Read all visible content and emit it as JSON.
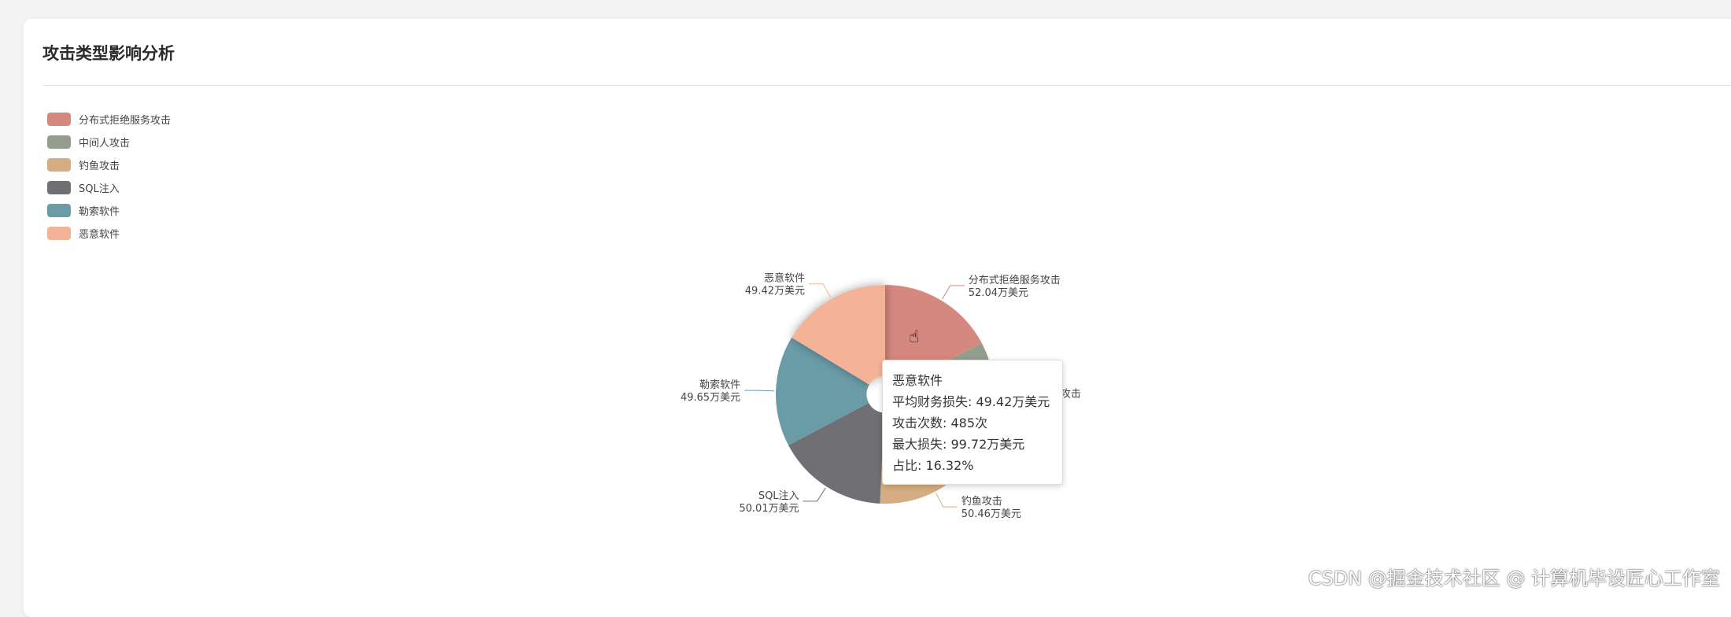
{
  "card": {
    "title": "攻击类型影响分析"
  },
  "chart_data": {
    "type": "pie",
    "title": "攻击类型影响分析",
    "unit": "万美元",
    "legend_position": "top-left",
    "start_angle": 90,
    "inner_radius_ratio": 0.17,
    "categories": [
      "分布式拒绝服务攻击",
      "中间人攻击",
      "钓鱼攻击",
      "SQL注入",
      "勒索软件",
      "恶意软件"
    ],
    "values": [
      52.04,
      51.2,
      50.46,
      50.01,
      49.65,
      49.42
    ],
    "value_labels": [
      "52.04万美元",
      "",
      "50.46万美元",
      "50.01万美元",
      "49.65万美元",
      "49.42万美元"
    ],
    "colors": [
      "#d4887e",
      "#949e8f",
      "#d6ad82",
      "#707074",
      "#6a9ca8",
      "#f4b396"
    ],
    "highlighted": "恶意软件"
  },
  "tooltip": {
    "title": "恶意软件",
    "lines": [
      "平均财务损失: 49.42万美元",
      "攻击次数: 485次",
      "最大损失: 99.72万美元",
      "占比: 16.32%"
    ]
  },
  "watermark": "CSDN @掘金技术社区 @ 计算机毕设匠心工作室"
}
